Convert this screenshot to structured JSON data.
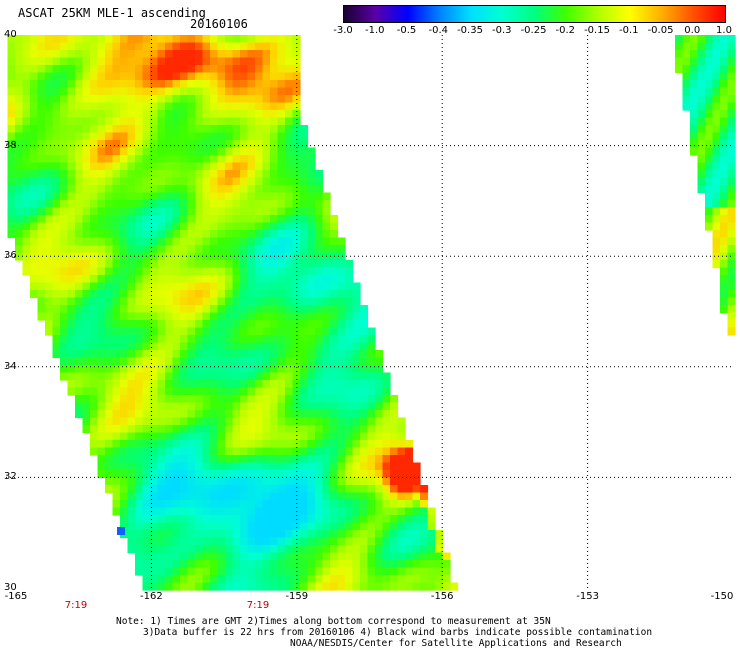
{
  "header": {
    "title": "ASCAT 25KM MLE-1 ascending",
    "date": "20160106"
  },
  "colorbar": {
    "labels": [
      "-3.0",
      "-1.0",
      "-0.5",
      "-0.4",
      "-0.35",
      "-0.3",
      "-0.25",
      "-0.2",
      "-0.15",
      "-0.1",
      "-0.05",
      "0.0",
      "1.0"
    ],
    "colors": [
      "#1a0030",
      "#5a00a8",
      "#0000ff",
      "#0080ff",
      "#00e0ff",
      "#00ffd0",
      "#00ff80",
      "#40ff00",
      "#b0ff00",
      "#ffff00",
      "#ffb000",
      "#ff5000",
      "#ff0000"
    ]
  },
  "axes": {
    "lat_labels": [
      "40",
      "38",
      "36",
      "34",
      "32",
      "30"
    ],
    "lon_labels": [
      "-165",
      "-162",
      "-159",
      "-156",
      "-153",
      "-150"
    ]
  },
  "time_labels": [
    "7:19",
    "7:19"
  ],
  "notes": {
    "line1": "Note: 1) Times are GMT 2)Times along bottom correspond to measurement at 35N",
    "line2": "3)Data buffer is 22 hrs from 20160106 4) Black wind barbs indicate possible contamination",
    "line3": "NOAA/NESDIS/Center for Satellite Applications and Research"
  }
}
